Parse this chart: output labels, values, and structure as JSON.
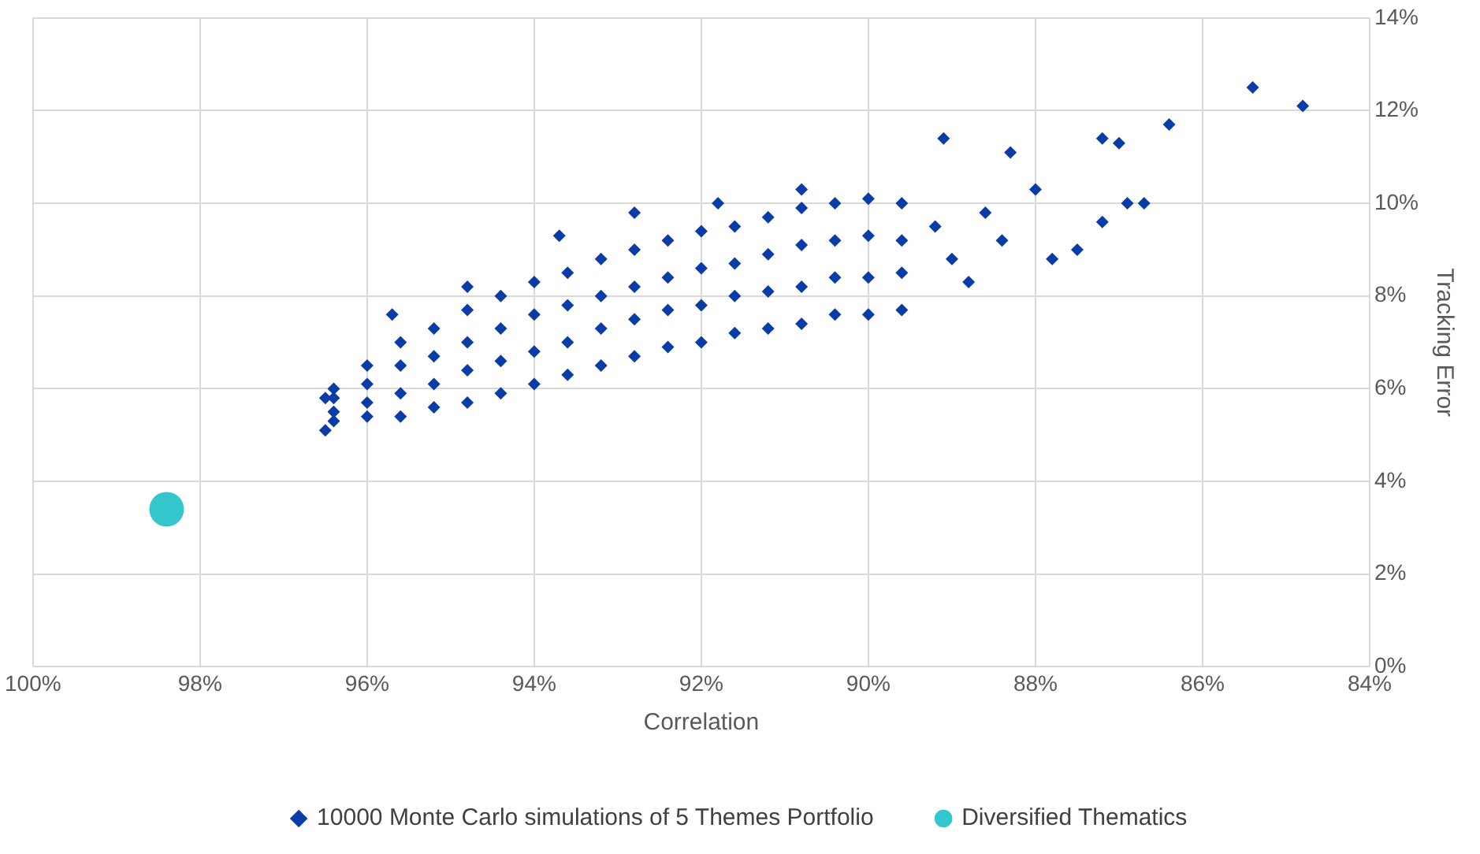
{
  "chart_data": {
    "type": "scatter",
    "xlabel": "Correlation",
    "ylabel": "Tracking Error",
    "xlim": [
      100,
      84
    ],
    "xticks": [
      {
        "value": 100,
        "label": "100%"
      },
      {
        "value": 98,
        "label": "98%"
      },
      {
        "value": 96,
        "label": "96%"
      },
      {
        "value": 94,
        "label": "94%"
      },
      {
        "value": 92,
        "label": "92%"
      },
      {
        "value": 90,
        "label": "90%"
      },
      {
        "value": 88,
        "label": "88%"
      },
      {
        "value": 86,
        "label": "86%"
      },
      {
        "value": 84,
        "label": "84%"
      }
    ],
    "ylim": [
      0,
      14
    ],
    "yticks": [
      {
        "value": 0,
        "label": "0%"
      },
      {
        "value": 2,
        "label": "2%"
      },
      {
        "value": 4,
        "label": "4%"
      },
      {
        "value": 6,
        "label": "6%"
      },
      {
        "value": 8,
        "label": "8%"
      },
      {
        "value": 10,
        "label": "10%"
      },
      {
        "value": 12,
        "label": "12%"
      },
      {
        "value": 14,
        "label": "14%"
      }
    ],
    "grid": true,
    "legend": "bottom",
    "series": [
      {
        "name": "10000 Monte Carlo simulations of 5 Themes Portfolio",
        "color": "#0a3ca8",
        "marker": "diamond",
        "x": [
          96.4,
          96.4,
          96.4,
          96.4,
          96.0,
          96.0,
          96.0,
          96.0,
          95.6,
          95.6,
          95.6,
          95.6,
          95.2,
          95.2,
          95.2,
          95.2,
          94.8,
          94.8,
          94.8,
          94.8,
          94.4,
          94.4,
          94.4,
          94.4,
          94.0,
          94.0,
          94.0,
          94.0,
          93.6,
          93.6,
          93.6,
          93.6,
          93.2,
          93.2,
          93.2,
          93.2,
          92.8,
          92.8,
          92.8,
          92.8,
          92.4,
          92.4,
          92.4,
          92.4,
          92.0,
          92.0,
          92.0,
          92.0,
          91.6,
          91.6,
          91.6,
          91.6,
          91.2,
          91.2,
          91.2,
          91.2,
          90.8,
          90.8,
          90.8,
          90.8,
          90.4,
          90.4,
          90.4,
          90.4,
          90.0,
          90.0,
          90.0,
          90.0,
          89.6,
          89.6,
          89.6,
          89.6,
          96.5,
          96.5,
          95.7,
          94.8,
          93.7,
          92.8,
          91.8,
          90.8,
          89.1,
          88.3,
          88.0,
          87.8,
          87.5,
          87.2,
          86.9,
          86.7,
          87.0,
          87.2,
          86.4,
          85.4,
          84.8,
          88.8,
          89.2,
          88.6,
          89.0,
          88.4
        ],
        "values": [
          5.3,
          5.5,
          5.8,
          6.0,
          5.4,
          5.7,
          6.1,
          6.5,
          5.4,
          5.9,
          6.5,
          7.0,
          5.6,
          6.1,
          6.7,
          7.3,
          5.7,
          6.4,
          7.0,
          7.7,
          5.9,
          6.6,
          7.3,
          8.0,
          6.1,
          6.8,
          7.6,
          8.3,
          6.3,
          7.0,
          7.8,
          8.5,
          6.5,
          7.3,
          8.0,
          8.8,
          6.7,
          7.5,
          8.2,
          9.0,
          6.9,
          7.7,
          8.4,
          9.2,
          7.0,
          7.8,
          8.6,
          9.4,
          7.2,
          8.0,
          8.7,
          9.5,
          7.3,
          8.1,
          8.9,
          9.7,
          7.4,
          8.2,
          9.1,
          9.9,
          7.6,
          8.4,
          9.2,
          10.0,
          7.6,
          8.4,
          9.3,
          10.1,
          7.7,
          8.5,
          9.2,
          10.0,
          5.1,
          5.8,
          7.6,
          8.2,
          9.3,
          9.8,
          10.0,
          10.3,
          11.4,
          11.1,
          10.3,
          8.8,
          9.0,
          9.6,
          10.0,
          10.0,
          11.3,
          11.4,
          11.7,
          12.5,
          12.1,
          8.3,
          9.5,
          9.8,
          8.8,
          9.2
        ]
      },
      {
        "name": "Diversified Thematics",
        "color": "#33c6cc",
        "marker": "circle",
        "x": [
          98.4
        ],
        "values": [
          3.4
        ]
      }
    ]
  }
}
